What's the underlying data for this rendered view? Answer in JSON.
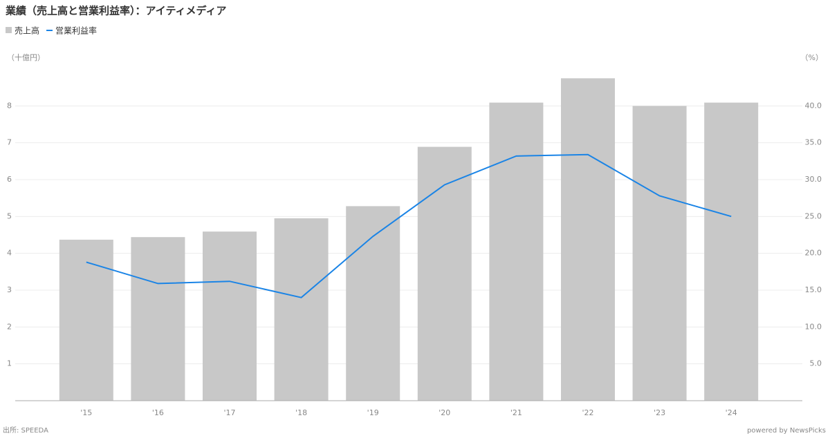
{
  "chart_data": {
    "type": "bar-line",
    "title": "業績（売上高と営業利益率）：アイティメディア",
    "y_label": "（十億円）",
    "y2_label": "（%）",
    "source": "出所: SPEEDA",
    "credit": "powered by NewsPicks",
    "categories": [
      "'15",
      "'16",
      "'17",
      "'18",
      "'19",
      "'20",
      "'21",
      "'22",
      "'23",
      "'24"
    ],
    "series": [
      {
        "name": "売上高",
        "type": "bar",
        "color": "#c8c8c8",
        "axis": "y",
        "values": [
          4.37,
          4.44,
          4.59,
          4.95,
          5.28,
          6.89,
          8.09,
          8.75,
          8.0,
          8.09
        ]
      },
      {
        "name": "営業利益率",
        "type": "line",
        "color": "#1a84e6",
        "axis": "y2",
        "values": [
          18.8,
          15.9,
          16.2,
          14.0,
          22.3,
          29.3,
          33.2,
          33.4,
          27.8,
          25.0
        ]
      }
    ],
    "ylim": [
      0,
      9
    ],
    "yticks": [
      1,
      2,
      3,
      4,
      5,
      6,
      7,
      8
    ],
    "y2lim": [
      0,
      45
    ],
    "y2ticks": [
      {
        "value": 5,
        "label": "5.0"
      },
      {
        "value": 10,
        "label": "10.0"
      },
      {
        "value": 15,
        "label": "15.0"
      },
      {
        "value": 20,
        "label": "20.0"
      },
      {
        "value": 25,
        "label": "25.0"
      },
      {
        "value": 30,
        "label": "30.0"
      },
      {
        "value": 35,
        "label": "35.0"
      },
      {
        "value": 40,
        "label": "40.0"
      }
    ],
    "grid": true
  }
}
